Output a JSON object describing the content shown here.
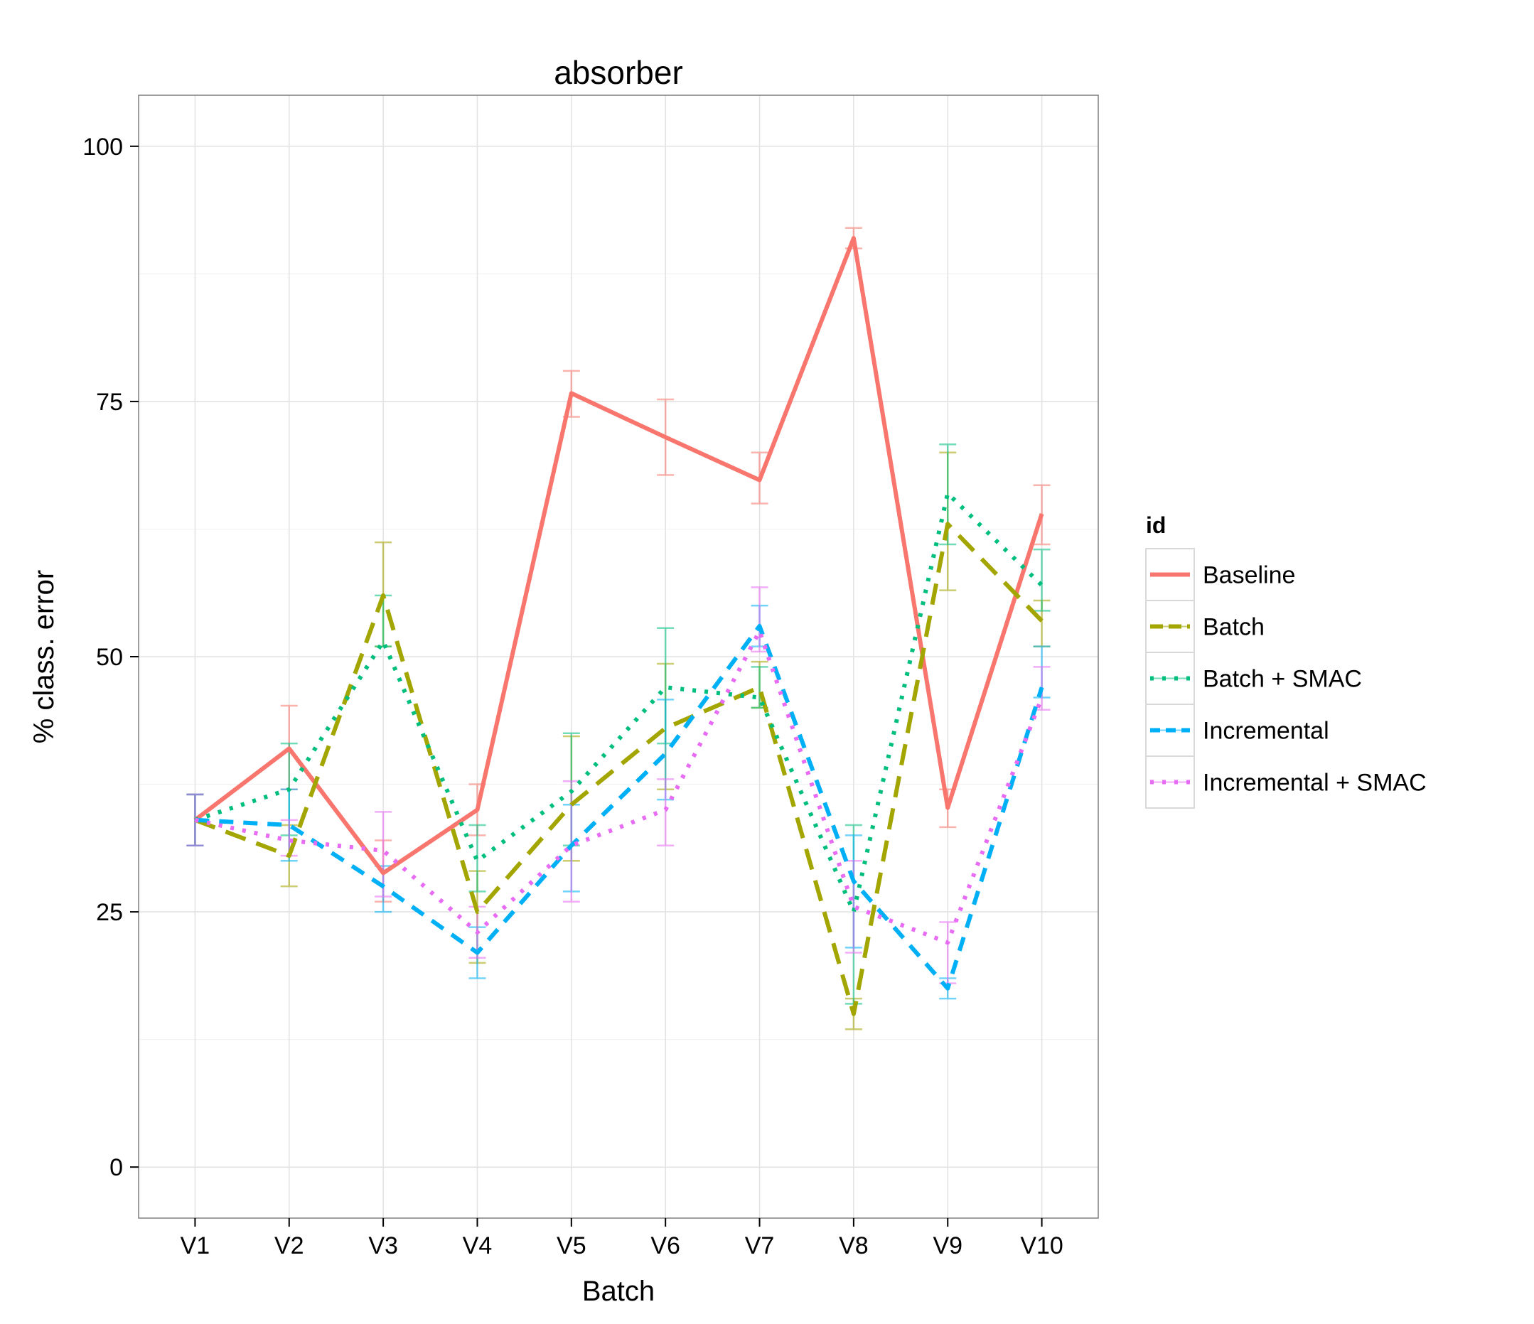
{
  "chart_data": {
    "type": "line",
    "title": "absorber",
    "xlabel": "Batch",
    "ylabel": "% class. error",
    "categories": [
      "V1",
      "V2",
      "V3",
      "V4",
      "V5",
      "V6",
      "V7",
      "V8",
      "V9",
      "V10"
    ],
    "ylim": [
      -5,
      105
    ],
    "yticks": [
      0,
      25,
      50,
      75,
      100
    ],
    "grid": true,
    "legend": {
      "title": "id",
      "position": "right"
    },
    "series": [
      {
        "name": "Baseline",
        "color": "#F8766D",
        "dash": "solid",
        "values": [
          34.0,
          41.0,
          28.8,
          35.0,
          75.8,
          71.5,
          67.3,
          91.0,
          35.2,
          64.0
        ],
        "err_low": [
          31.5,
          37.0,
          26.0,
          32.5,
          73.5,
          67.8,
          65.0,
          90.0,
          33.3,
          61.0
        ],
        "err_high": [
          36.5,
          45.2,
          32.0,
          37.5,
          78.0,
          75.2,
          70.0,
          92.0,
          37.0,
          66.8
        ]
      },
      {
        "name": "Batch",
        "color": "#A3A500",
        "dash": "longdash",
        "values": [
          34.0,
          30.5,
          56.0,
          25.0,
          35.5,
          43.0,
          47.0,
          15.0,
          63.0,
          53.5
        ],
        "err_low": [
          31.5,
          27.5,
          51.0,
          20.0,
          30.0,
          37.0,
          45.0,
          13.5,
          56.5,
          51.0
        ],
        "err_high": [
          36.5,
          33.5,
          61.2,
          29.0,
          42.2,
          49.3,
          49.5,
          16.5,
          70.0,
          55.5
        ]
      },
      {
        "name": "Batch + SMAC",
        "color": "#00BF7D",
        "dash": "dotted",
        "values": [
          34.0,
          37.0,
          51.5,
          30.0,
          36.8,
          47.0,
          46.0,
          25.0,
          66.0,
          57.0
        ],
        "err_low": [
          31.5,
          32.5,
          51.0,
          27.0,
          31.5,
          41.5,
          45.0,
          16.0,
          61.0,
          54.5
        ],
        "err_high": [
          36.5,
          41.5,
          56.0,
          33.5,
          42.5,
          52.8,
          49.0,
          33.5,
          70.8,
          60.5
        ]
      },
      {
        "name": "Incremental",
        "color": "#00B0F6",
        "dash": "dashed",
        "values": [
          34.0,
          33.5,
          27.5,
          21.0,
          31.5,
          40.5,
          53.0,
          28.0,
          17.5,
          47.0
        ],
        "err_low": [
          31.5,
          30.0,
          25.0,
          18.5,
          27.0,
          36.0,
          51.0,
          21.5,
          16.5,
          46.0
        ],
        "err_high": [
          36.5,
          37.0,
          29.5,
          23.5,
          35.5,
          45.8,
          55.0,
          32.5,
          18.5,
          51.0
        ]
      },
      {
        "name": "Incremental + SMAC",
        "color": "#E76BF3",
        "dash": "dotted",
        "values": [
          34.0,
          32.0,
          31.0,
          23.0,
          31.5,
          35.0,
          52.5,
          25.5,
          22.0,
          46.0
        ],
        "err_low": [
          31.5,
          30.5,
          26.5,
          20.5,
          26.0,
          31.5,
          50.5,
          21.0,
          18.0,
          44.8
        ],
        "err_high": [
          36.5,
          34.0,
          34.8,
          25.5,
          37.8,
          38.0,
          56.8,
          30.0,
          24.0,
          49.0
        ]
      }
    ]
  }
}
